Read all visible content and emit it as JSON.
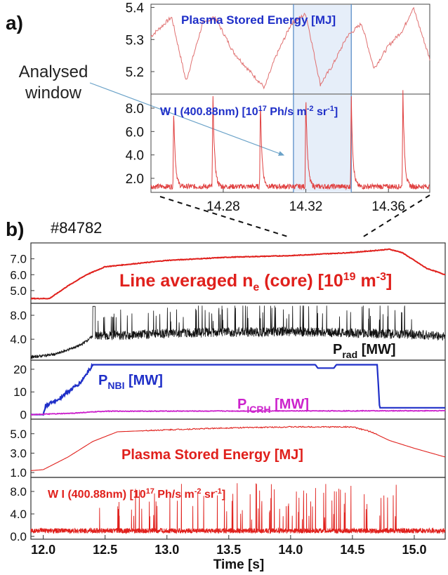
{
  "panel_a": {
    "letter": "a)",
    "note_line1": "Analysed",
    "note_line2": "window",
    "top_title": "Plasma Stored Energy [MJ]",
    "bottom_title_main": "W I (400.88nm) [10",
    "bottom_title_sup1": "17",
    "bottom_title_mid": " Ph/s m",
    "bottom_title_sup2": "-2",
    "bottom_title_mid2": " sr",
    "bottom_title_sup3": "-1",
    "bottom_title_end": "]",
    "top_yticks": [
      "5.4",
      "5.3",
      "5.2"
    ],
    "bottom_yticks": [
      "8.0",
      "6.0",
      "4.0",
      "2.0"
    ],
    "xticks": [
      "14.28",
      "14.32",
      "14.36"
    ]
  },
  "panel_b": {
    "letter": "b)",
    "shot": "#84782",
    "xlabel": "Time [s]",
    "xticks": [
      "12.0",
      "12.5",
      "13.0",
      "13.5",
      "14.0",
      "14.5",
      "15.0"
    ],
    "p1": {
      "yticks": [
        "7.0",
        "6.0",
        "5.0"
      ],
      "label_main": "Line averaged n",
      "label_sub": "e",
      "label_mid": " (core) [10",
      "label_sup": "19",
      "label_mid2": " m",
      "label_sup2": "-3",
      "label_end": "]"
    },
    "p2": {
      "yticks": [
        "8.0",
        "4.0"
      ],
      "label_main": "P",
      "label_sub": "rad",
      "label_end": " [MW]"
    },
    "p3": {
      "yticks": [
        "20",
        "10",
        "0"
      ],
      "nbi_main": "P",
      "nbi_sub": "NBI",
      "nbi_end": " [MW]",
      "icrh_main": "P",
      "icrh_sub": "ICRH",
      "icrh_end": " [MW]"
    },
    "p4": {
      "yticks": [
        "5.0",
        "3.0",
        "1.0"
      ],
      "label": "Plasma Stored Energy [MJ]"
    },
    "p5": {
      "yticks": [
        "8.0",
        "4.0",
        "0.0"
      ],
      "label_main": "W I (400.88nm) [10",
      "label_sup": "17",
      "label_mid": " Ph/s m",
      "label_sup2": "-2",
      "label_mid2": " sr",
      "label_sup3": "-1",
      "label_end": "]"
    }
  },
  "colors": {
    "red": "#e0201c",
    "light_red": "#e07070",
    "blue": "#1f2fc8",
    "magenta": "#cc22cc",
    "black": "#111111",
    "window": "#e6eef9",
    "window_line": "#5a8ec8"
  },
  "chart_data": [
    {
      "type": "line",
      "panel": "a-top",
      "xlim": [
        14.245,
        14.38
      ],
      "ylim": [
        5.13,
        5.41
      ],
      "series": [
        {
          "name": "Plasma Stored Energy [MJ]",
          "x": [
            14.245,
            14.255,
            14.262,
            14.27,
            14.276,
            14.285,
            14.293,
            14.3,
            14.305,
            14.313,
            14.32,
            14.327,
            14.333,
            14.34,
            14.347,
            14.353,
            14.36,
            14.367,
            14.372,
            14.38
          ],
          "y": [
            5.31,
            5.37,
            5.17,
            5.35,
            5.37,
            5.26,
            5.2,
            5.15,
            5.24,
            5.35,
            5.38,
            5.16,
            5.22,
            5.31,
            5.35,
            5.21,
            5.28,
            5.33,
            5.4,
            5.24
          ]
        }
      ],
      "window": [
        14.314,
        14.342
      ]
    },
    {
      "type": "line",
      "panel": "a-bottom",
      "xlim": [
        14.245,
        14.38
      ],
      "ylim": [
        0.8,
        9.2
      ],
      "series": [
        {
          "name": "W I (400.88nm)",
          "spikes_x": [
            14.256,
            14.275,
            14.298,
            14.32,
            14.342,
            14.367
          ],
          "spikes_y": [
            6.8,
            8.0,
            7.2,
            8.0,
            7.8,
            8.2
          ],
          "baseline": 1.3
        }
      ],
      "window": [
        14.314,
        14.342
      ]
    },
    {
      "type": "line",
      "panel": "b1",
      "xlim": [
        11.9,
        15.25
      ],
      "ylim": [
        4.2,
        8.0
      ],
      "series": [
        {
          "name": "Line averaged n_e (core)",
          "x": [
            11.9,
            12.05,
            12.2,
            12.35,
            12.5,
            12.75,
            13.0,
            13.5,
            14.0,
            14.5,
            14.8,
            14.9,
            15.0,
            15.1,
            15.25
          ],
          "y": [
            4.5,
            4.5,
            5.3,
            6.0,
            6.5,
            6.7,
            6.9,
            7.1,
            7.2,
            7.4,
            7.6,
            7.4,
            6.9,
            6.4,
            6.0
          ]
        }
      ]
    },
    {
      "type": "line",
      "panel": "b2",
      "xlim": [
        11.9,
        15.25
      ],
      "ylim": [
        0.5,
        10.0
      ],
      "series": [
        {
          "name": "P_rad [MW]",
          "x": [
            11.9,
            12.1,
            12.3,
            12.4,
            13.0,
            14.0,
            14.6,
            15.0,
            15.25
          ],
          "y": [
            1.0,
            1.5,
            3.0,
            4.5,
            5.0,
            5.3,
            5.0,
            4.8,
            4.5
          ]
        }
      ]
    },
    {
      "type": "line",
      "panel": "b3",
      "xlim": [
        11.9,
        15.25
      ],
      "ylim": [
        -2,
        24
      ],
      "series": [
        {
          "name": "P_NBI [MW]",
          "x": [
            11.9,
            12.0,
            12.02,
            12.1,
            12.2,
            12.3,
            12.35,
            12.4,
            14.2,
            14.22,
            14.35,
            14.37,
            14.7,
            14.72,
            15.25
          ],
          "y": [
            0,
            0,
            4,
            6,
            10,
            14,
            18,
            22,
            22,
            20.5,
            20.5,
            22,
            22,
            3,
            3
          ]
        },
        {
          "name": "P_ICRH [MW]",
          "x": [
            11.9,
            12.2,
            12.5,
            15.25
          ],
          "y": [
            0,
            0.5,
            1.5,
            1.7
          ]
        }
      ]
    },
    {
      "type": "line",
      "panel": "b4",
      "xlim": [
        11.9,
        15.25
      ],
      "ylim": [
        0.5,
        6.5
      ],
      "series": [
        {
          "name": "Plasma Stored Energy [MJ]",
          "x": [
            11.9,
            12.0,
            12.2,
            12.4,
            12.6,
            12.8,
            13.0,
            13.5,
            14.0,
            14.5,
            14.65,
            14.8,
            15.0,
            15.25
          ],
          "y": [
            1.2,
            1.3,
            2.6,
            4.2,
            5.2,
            5.3,
            5.4,
            5.6,
            5.7,
            5.7,
            5.2,
            4.3,
            3.5,
            2.6
          ]
        }
      ]
    },
    {
      "type": "line",
      "panel": "b5",
      "xlim": [
        11.9,
        15.25
      ],
      "ylim": [
        -0.5,
        10.5
      ],
      "series": [
        {
          "name": "W I (400.88nm)",
          "baseline": 1.0,
          "spike_range": [
            12.4,
            14.9
          ],
          "spike_height": 6.5
        }
      ]
    }
  ]
}
